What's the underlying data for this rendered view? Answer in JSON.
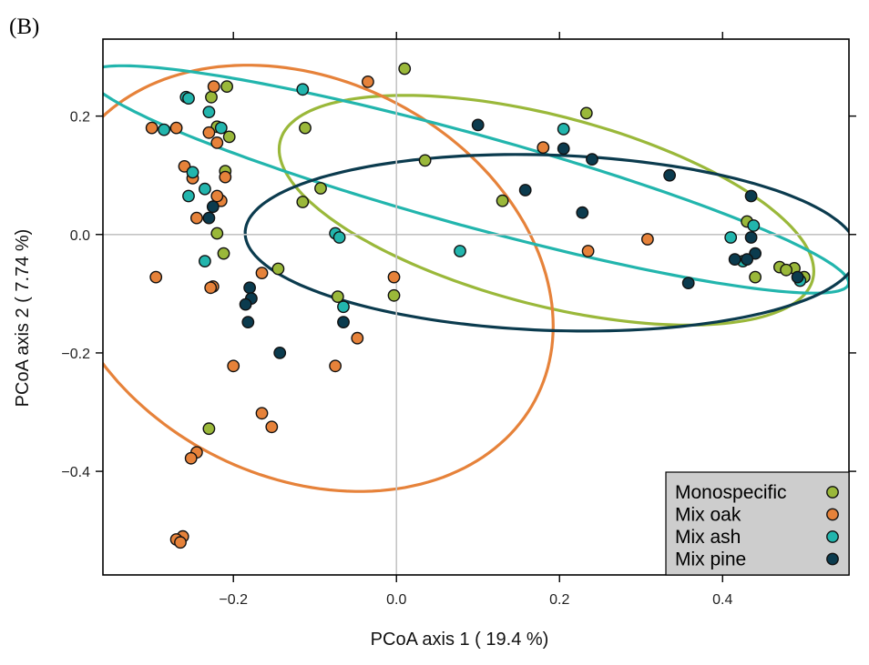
{
  "panel_label": "(B)",
  "chart_data": {
    "type": "scatter",
    "xlabel": "PCoA axis 1 ( 19.4 %)",
    "ylabel": "PCoA axis 2 ( 7.74 %)",
    "xlim": [
      -0.36,
      0.555
    ],
    "ylim": [
      -0.575,
      0.33
    ],
    "xticks": [
      -0.2,
      0.0,
      0.2,
      0.4
    ],
    "xtick_labels": [
      "−0.2",
      "0.0",
      "0.2",
      "0.4"
    ],
    "yticks": [
      -0.4,
      -0.2,
      0.0,
      0.2
    ],
    "ytick_labels": [
      "−0.4",
      "−0.2",
      "0.0",
      "0.2"
    ],
    "reference_lines": {
      "x": 0,
      "y": 0
    },
    "legend_position": "bottom-right",
    "series": [
      {
        "name": "Monospecific",
        "color": "#9ab83a",
        "points": [
          [
            0.01,
            0.28
          ],
          [
            0.233,
            0.205
          ],
          [
            -0.227,
            0.232
          ],
          [
            -0.208,
            0.25
          ],
          [
            -0.112,
            0.18
          ],
          [
            -0.22,
            0.182
          ],
          [
            -0.205,
            0.165
          ],
          [
            -0.21,
            0.107
          ],
          [
            0.035,
            0.125
          ],
          [
            -0.093,
            0.078
          ],
          [
            -0.115,
            0.055
          ],
          [
            0.13,
            0.057
          ],
          [
            -0.22,
            0.002
          ],
          [
            -0.212,
            -0.032
          ],
          [
            -0.145,
            -0.058
          ],
          [
            -0.072,
            -0.105
          ],
          [
            -0.003,
            -0.103
          ],
          [
            0.43,
            0.022
          ],
          [
            0.44,
            -0.072
          ],
          [
            0.47,
            -0.055
          ],
          [
            0.488,
            -0.057
          ],
          [
            0.5,
            -0.072
          ],
          [
            0.478,
            -0.06
          ],
          [
            -0.23,
            -0.328
          ]
        ]
      },
      {
        "name": "Mix oak",
        "color": "#e6823a",
        "points": [
          [
            -0.224,
            0.25
          ],
          [
            -0.035,
            0.258
          ],
          [
            -0.3,
            0.18
          ],
          [
            -0.27,
            0.18
          ],
          [
            -0.23,
            0.172
          ],
          [
            -0.22,
            0.155
          ],
          [
            -0.26,
            0.115
          ],
          [
            -0.25,
            0.095
          ],
          [
            -0.21,
            0.097
          ],
          [
            -0.215,
            0.057
          ],
          [
            -0.22,
            0.065
          ],
          [
            -0.245,
            0.028
          ],
          [
            -0.295,
            -0.072
          ],
          [
            -0.165,
            -0.065
          ],
          [
            -0.225,
            -0.088
          ],
          [
            -0.228,
            -0.09
          ],
          [
            -0.003,
            -0.072
          ],
          [
            0.235,
            -0.028
          ],
          [
            0.308,
            -0.008
          ],
          [
            0.18,
            0.147
          ],
          [
            -0.048,
            -0.175
          ],
          [
            -0.075,
            -0.222
          ],
          [
            -0.2,
            -0.222
          ],
          [
            -0.165,
            -0.302
          ],
          [
            -0.153,
            -0.325
          ],
          [
            -0.245,
            -0.368
          ],
          [
            -0.252,
            -0.378
          ],
          [
            -0.262,
            -0.51
          ],
          [
            -0.27,
            -0.515
          ],
          [
            -0.265,
            -0.52
          ]
        ]
      },
      {
        "name": "Mix ash",
        "color": "#22b5ad",
        "points": [
          [
            -0.258,
            0.232
          ],
          [
            -0.255,
            0.23
          ],
          [
            -0.115,
            0.245
          ],
          [
            -0.23,
            0.207
          ],
          [
            -0.285,
            0.177
          ],
          [
            -0.215,
            0.18
          ],
          [
            -0.25,
            0.105
          ],
          [
            -0.235,
            0.077
          ],
          [
            -0.255,
            0.065
          ],
          [
            -0.235,
            -0.045
          ],
          [
            -0.075,
            0.002
          ],
          [
            -0.07,
            -0.005
          ],
          [
            -0.065,
            -0.122
          ],
          [
            0.205,
            0.178
          ],
          [
            0.078,
            -0.028
          ],
          [
            0.41,
            -0.005
          ],
          [
            0.438,
            0.015
          ],
          [
            0.495,
            -0.078
          ],
          [
            0.425,
            -0.045
          ]
        ]
      },
      {
        "name": "Mix pine",
        "color": "#0b3b4e",
        "points": [
          [
            -0.225,
            0.047
          ],
          [
            -0.23,
            0.028
          ],
          [
            0.1,
            0.185
          ],
          [
            0.205,
            0.145
          ],
          [
            0.24,
            0.127
          ],
          [
            0.158,
            0.075
          ],
          [
            0.335,
            0.1
          ],
          [
            0.435,
            0.065
          ],
          [
            0.228,
            0.037
          ],
          [
            0.435,
            -0.005
          ],
          [
            0.44,
            -0.032
          ],
          [
            0.415,
            -0.042
          ],
          [
            0.43,
            -0.042
          ],
          [
            0.358,
            -0.082
          ],
          [
            0.492,
            -0.072
          ],
          [
            -0.18,
            -0.09
          ],
          [
            -0.178,
            -0.108
          ],
          [
            -0.185,
            -0.118
          ],
          [
            -0.182,
            -0.148
          ],
          [
            -0.065,
            -0.148
          ],
          [
            -0.143,
            -0.2
          ]
        ]
      }
    ],
    "ellipses": [
      {
        "series": "Monospecific",
        "cx": 0.184,
        "cy": 0.041,
        "a": 0.348,
        "b": 0.155,
        "angle_deg": -22
      },
      {
        "series": "Mix oak",
        "cx": -0.114,
        "cy": -0.074,
        "a": 0.377,
        "b": 0.285,
        "angle_deg": -63
      },
      {
        "series": "Mix ash",
        "cx": 0.088,
        "cy": 0.093,
        "a": 0.499,
        "b": 0.075,
        "angle_deg": -21
      },
      {
        "series": "Mix pine",
        "cx": 0.19,
        "cy": -0.014,
        "a": 0.376,
        "b": 0.148,
        "angle_deg": -3
      }
    ]
  }
}
